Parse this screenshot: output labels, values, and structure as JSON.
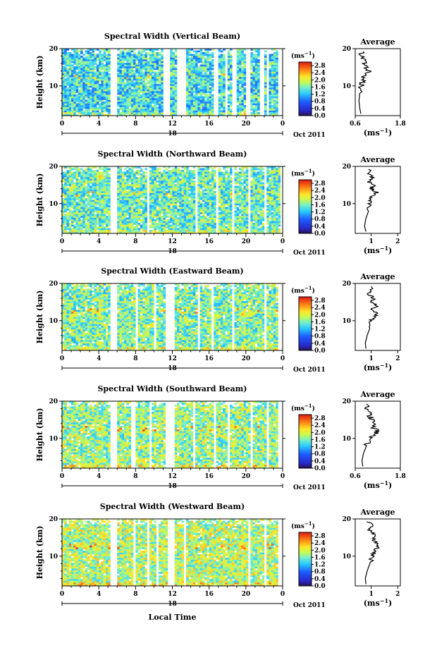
{
  "chart_data": {
    "type": "heatmap",
    "x_axis": {
      "ticks": [
        "0",
        "4",
        "8",
        "12",
        "16",
        "20",
        "0"
      ],
      "date_label": "Oct 2011",
      "day_marker": "18",
      "xlabel": "Local Time"
    },
    "colorbar": {
      "unit": "(ms",
      "unit_exp": "−1",
      "unit_close": ")",
      "ticks": [
        "0.0",
        "0.4",
        "0.8",
        "1.2",
        "1.6",
        "2.0",
        "2.4",
        "2.8"
      ],
      "range": [
        0,
        3.0
      ]
    },
    "avg_ylabel": "Average",
    "panels": [
      {
        "title": "Spectral Width (Vertical Beam)",
        "ylabel": "Height (km)",
        "yticks": [
          "10",
          "20"
        ],
        "ylim": [
          2,
          20
        ],
        "avg_xticks": [
          "0.6",
          "1.8"
        ],
        "avg_xlim": [
          0.6,
          1.8
        ],
        "avg_unit": "(ms",
        "avg_unit_exp": "−1",
        "avg_unit_close": ")",
        "gaps_hours": [
          [
            5.3,
            5.9
          ],
          [
            10.9,
            11.8
          ],
          [
            12.5,
            13.5
          ],
          [
            14.4,
            14.6
          ],
          [
            16.5,
            17.0
          ],
          [
            17.8,
            18.0
          ],
          [
            18.6,
            19.1
          ],
          [
            20.1,
            20.5
          ],
          [
            21.6,
            21.9
          ],
          [
            22.3,
            22.5
          ],
          [
            23.6,
            24
          ]
        ],
        "hot_spots": [
          [
            19.8,
            2.5,
            2.6
          ]
        ],
        "level": 0.5,
        "avg_profile": [
          [
            0.75,
            2.5
          ],
          [
            0.72,
            4
          ],
          [
            0.7,
            6
          ],
          [
            0.72,
            8
          ],
          [
            0.76,
            10
          ],
          [
            0.78,
            11
          ],
          [
            0.8,
            12
          ],
          [
            0.85,
            13
          ],
          [
            0.95,
            14
          ],
          [
            0.9,
            15
          ],
          [
            0.82,
            16
          ],
          [
            0.8,
            17
          ],
          [
            0.78,
            18
          ],
          [
            0.76,
            19.5
          ]
        ]
      },
      {
        "title": "Spectral Width (Northward Beam)",
        "ylabel": "Height (km)",
        "yticks": [
          "10",
          "20"
        ],
        "ylim": [
          2,
          20
        ],
        "avg_xticks": [
          "1",
          "2"
        ],
        "avg_xlim": [
          0.4,
          2.1
        ],
        "avg_unit": "(ms",
        "avg_unit_exp": "−1",
        "avg_unit_close": ")",
        "gaps_hours": [
          [
            5.3,
            5.9
          ],
          [
            9.3,
            9.5
          ],
          [
            11.4,
            11.6
          ],
          [
            12.4,
            12.6
          ],
          [
            14.5,
            14.8
          ],
          [
            16.8,
            17.0
          ],
          [
            18.4,
            18.7
          ],
          [
            20.3,
            20.5
          ],
          [
            22.0,
            22.2
          ],
          [
            23.7,
            24
          ]
        ],
        "hot_spots": [
          [
            4.2,
            17.2,
            2.6
          ],
          [
            4.4,
            10.5,
            2.2
          ],
          [
            19.8,
            2.5,
            2.4
          ]
        ],
        "level": 0.6,
        "avg_profile": [
          [
            0.8,
            2.5
          ],
          [
            0.75,
            4
          ],
          [
            0.8,
            6
          ],
          [
            0.9,
            8
          ],
          [
            0.95,
            10
          ],
          [
            1.0,
            11
          ],
          [
            1.05,
            12
          ],
          [
            1.2,
            13
          ],
          [
            1.0,
            14
          ],
          [
            1.1,
            15
          ],
          [
            0.9,
            16
          ],
          [
            1.05,
            17
          ],
          [
            0.9,
            18
          ],
          [
            1.0,
            19.5
          ]
        ]
      },
      {
        "title": "Spectral Width (Eastward Beam)",
        "ylabel": "Height (km)",
        "yticks": [
          "10",
          "20"
        ],
        "ylim": [
          2,
          20
        ],
        "avg_xticks": [
          "1",
          "2"
        ],
        "avg_xlim": [
          0.4,
          2.1
        ],
        "avg_unit": "(ms",
        "avg_unit_exp": "−1",
        "avg_unit_close": ")",
        "gaps_hours": [
          [
            5.3,
            5.9
          ],
          [
            8.0,
            8.2
          ],
          [
            10.0,
            10.2
          ],
          [
            11.3,
            12.2
          ],
          [
            14.7,
            15.0
          ],
          [
            16.3,
            16.5
          ],
          [
            18.6,
            18.8
          ],
          [
            20.4,
            20.6
          ],
          [
            22.1,
            22.3
          ],
          [
            23.5,
            24
          ]
        ],
        "hot_spots": [
          [
            4.2,
            10.8,
            2.4
          ],
          [
            19.7,
            11.8,
            2.6
          ],
          [
            16.5,
            11.0,
            2.2
          ],
          [
            13.5,
            10.0,
            2.3
          ]
        ],
        "level": 0.65,
        "avg_profile": [
          [
            0.8,
            2.5
          ],
          [
            0.78,
            4
          ],
          [
            0.85,
            6
          ],
          [
            0.95,
            8
          ],
          [
            1.0,
            10
          ],
          [
            1.15,
            11
          ],
          [
            1.25,
            12
          ],
          [
            1.05,
            13
          ],
          [
            1.2,
            14
          ],
          [
            0.95,
            15
          ],
          [
            1.1,
            16
          ],
          [
            0.9,
            17
          ],
          [
            1.0,
            18
          ],
          [
            0.95,
            19.5
          ]
        ]
      },
      {
        "title": "Spectral Width (Southward Beam)",
        "ylabel": "Height (km)",
        "yticks": [
          "10",
          "20"
        ],
        "ylim": [
          2,
          20
        ],
        "avg_xticks": [
          "0.6",
          "1.8"
        ],
        "avg_xlim": [
          0.6,
          1.8
        ],
        "avg_unit": "(ms",
        "avg_unit_exp": "−1",
        "avg_unit_close": ")",
        "gaps_hours": [
          [
            5.3,
            5.9
          ],
          [
            7.5,
            8.0
          ],
          [
            9.5,
            9.7
          ],
          [
            11.2,
            12.3
          ],
          [
            14.3,
            14.5
          ],
          [
            16.5,
            16.7
          ],
          [
            18.0,
            18.2
          ],
          [
            20.5,
            20.7
          ],
          [
            22.3,
            22.5
          ],
          [
            23.5,
            24
          ]
        ],
        "hot_spots": [
          [
            4.1,
            12.5,
            2.6
          ],
          [
            8.9,
            12.0,
            2.5
          ],
          [
            16.0,
            12.5,
            2.3
          ],
          [
            19.7,
            2.5,
            2.4
          ]
        ],
        "level": 0.7,
        "avg_profile": [
          [
            0.8,
            2.5
          ],
          [
            0.78,
            4
          ],
          [
            0.82,
            6
          ],
          [
            0.9,
            8
          ],
          [
            1.0,
            10
          ],
          [
            1.1,
            11
          ],
          [
            1.2,
            12
          ],
          [
            1.05,
            13
          ],
          [
            1.15,
            14
          ],
          [
            1.05,
            15
          ],
          [
            1.0,
            16
          ],
          [
            0.95,
            17
          ],
          [
            0.9,
            18
          ],
          [
            0.88,
            19.5
          ]
        ]
      },
      {
        "title": "Spectral Width (Westward Beam)",
        "ylabel": "Height (km)",
        "yticks": [
          "10",
          "20"
        ],
        "ylim": [
          2,
          20
        ],
        "avg_xticks": [
          "1",
          "2"
        ],
        "avg_xlim": [
          0.4,
          2.1
        ],
        "avg_unit": "(ms",
        "avg_unit_exp": "−1",
        "avg_unit_close": ")",
        "gaps_hours": [
          [
            5.3,
            5.9
          ],
          [
            7.8,
            8.0
          ],
          [
            9.2,
            9.4
          ],
          [
            10.2,
            10.6
          ],
          [
            11.4,
            12.3
          ],
          [
            13.2,
            13.4
          ],
          [
            14.9,
            15.1
          ],
          [
            16.4,
            16.6
          ],
          [
            18.4,
            18.6
          ],
          [
            20.3,
            20.5
          ],
          [
            22.1,
            22.3
          ],
          [
            23.5,
            24
          ]
        ],
        "hot_spots": [
          [
            4.3,
            13.5,
            2.4
          ],
          [
            19.6,
            12.5,
            2.8
          ],
          [
            10.0,
            9.5,
            2.4
          ],
          [
            3.5,
            12.0,
            2.2
          ]
        ],
        "level": 0.75,
        "avg_profile": [
          [
            0.8,
            2.5
          ],
          [
            0.78,
            4
          ],
          [
            0.85,
            6
          ],
          [
            0.95,
            8
          ],
          [
            1.05,
            10
          ],
          [
            1.1,
            11
          ],
          [
            1.2,
            12
          ],
          [
            1.3,
            13
          ],
          [
            1.15,
            14
          ],
          [
            1.05,
            15
          ],
          [
            1.1,
            16
          ],
          [
            0.95,
            17
          ],
          [
            1.0,
            18
          ],
          [
            0.9,
            19.5
          ]
        ]
      }
    ]
  }
}
